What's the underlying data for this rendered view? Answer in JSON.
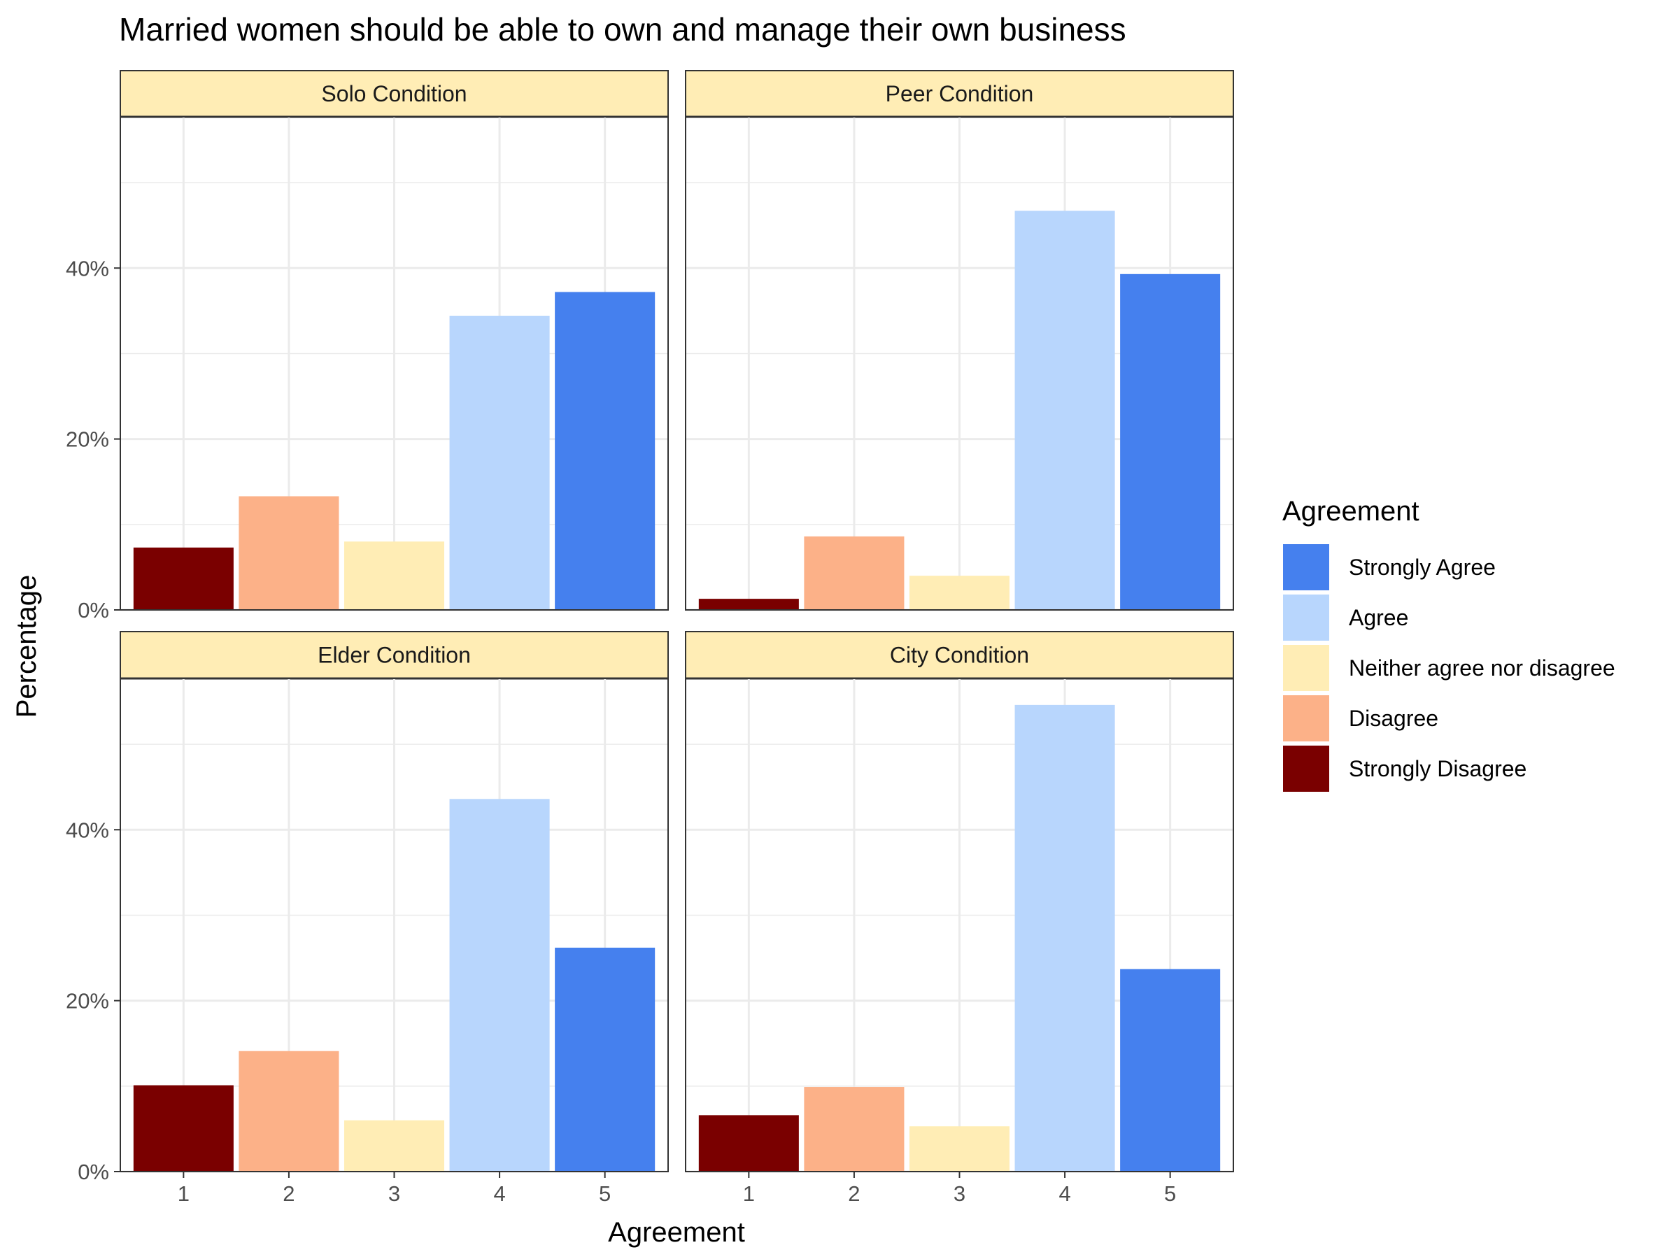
{
  "chart_data": {
    "type": "bar",
    "title": "Married women should be able to own and manage their own business",
    "xlabel": "Agreement",
    "ylabel": "Percentage",
    "categories": [
      "1",
      "2",
      "3",
      "4",
      "5"
    ],
    "y_tick_labels": [
      "0%",
      "20%",
      "40%"
    ],
    "y_ticks": [
      0,
      20,
      40
    ],
    "ylim": [
      0,
      57.7
    ],
    "grid": true,
    "legend": {
      "title": "Agreement",
      "placement": "right",
      "entries": [
        {
          "label": "Strongly Agree",
          "color": "#4580ee"
        },
        {
          "label": "Agree",
          "color": "#b8d6fd"
        },
        {
          "label": "Neither agree nor disagree",
          "color": "#ffedb5"
        },
        {
          "label": "Disagree",
          "color": "#fcb188"
        },
        {
          "label": "Strongly Disagree",
          "color": "#7a0000"
        }
      ]
    },
    "bar_colors": [
      "#7a0000",
      "#fcb188",
      "#ffedb5",
      "#b8d6fd",
      "#4580ee"
    ],
    "strip_color": "#ffedb5",
    "panels": [
      {
        "name": "Solo Condition",
        "values": [
          7.3,
          13.3,
          8.0,
          34.4,
          37.2
        ]
      },
      {
        "name": "Peer Condition",
        "values": [
          1.3,
          8.6,
          4.0,
          46.7,
          39.3
        ]
      },
      {
        "name": "Elder Condition",
        "values": [
          10.1,
          14.1,
          6.0,
          43.6,
          26.2
        ]
      },
      {
        "name": "City Condition",
        "values": [
          6.6,
          9.9,
          5.3,
          54.6,
          23.7
        ]
      }
    ]
  }
}
